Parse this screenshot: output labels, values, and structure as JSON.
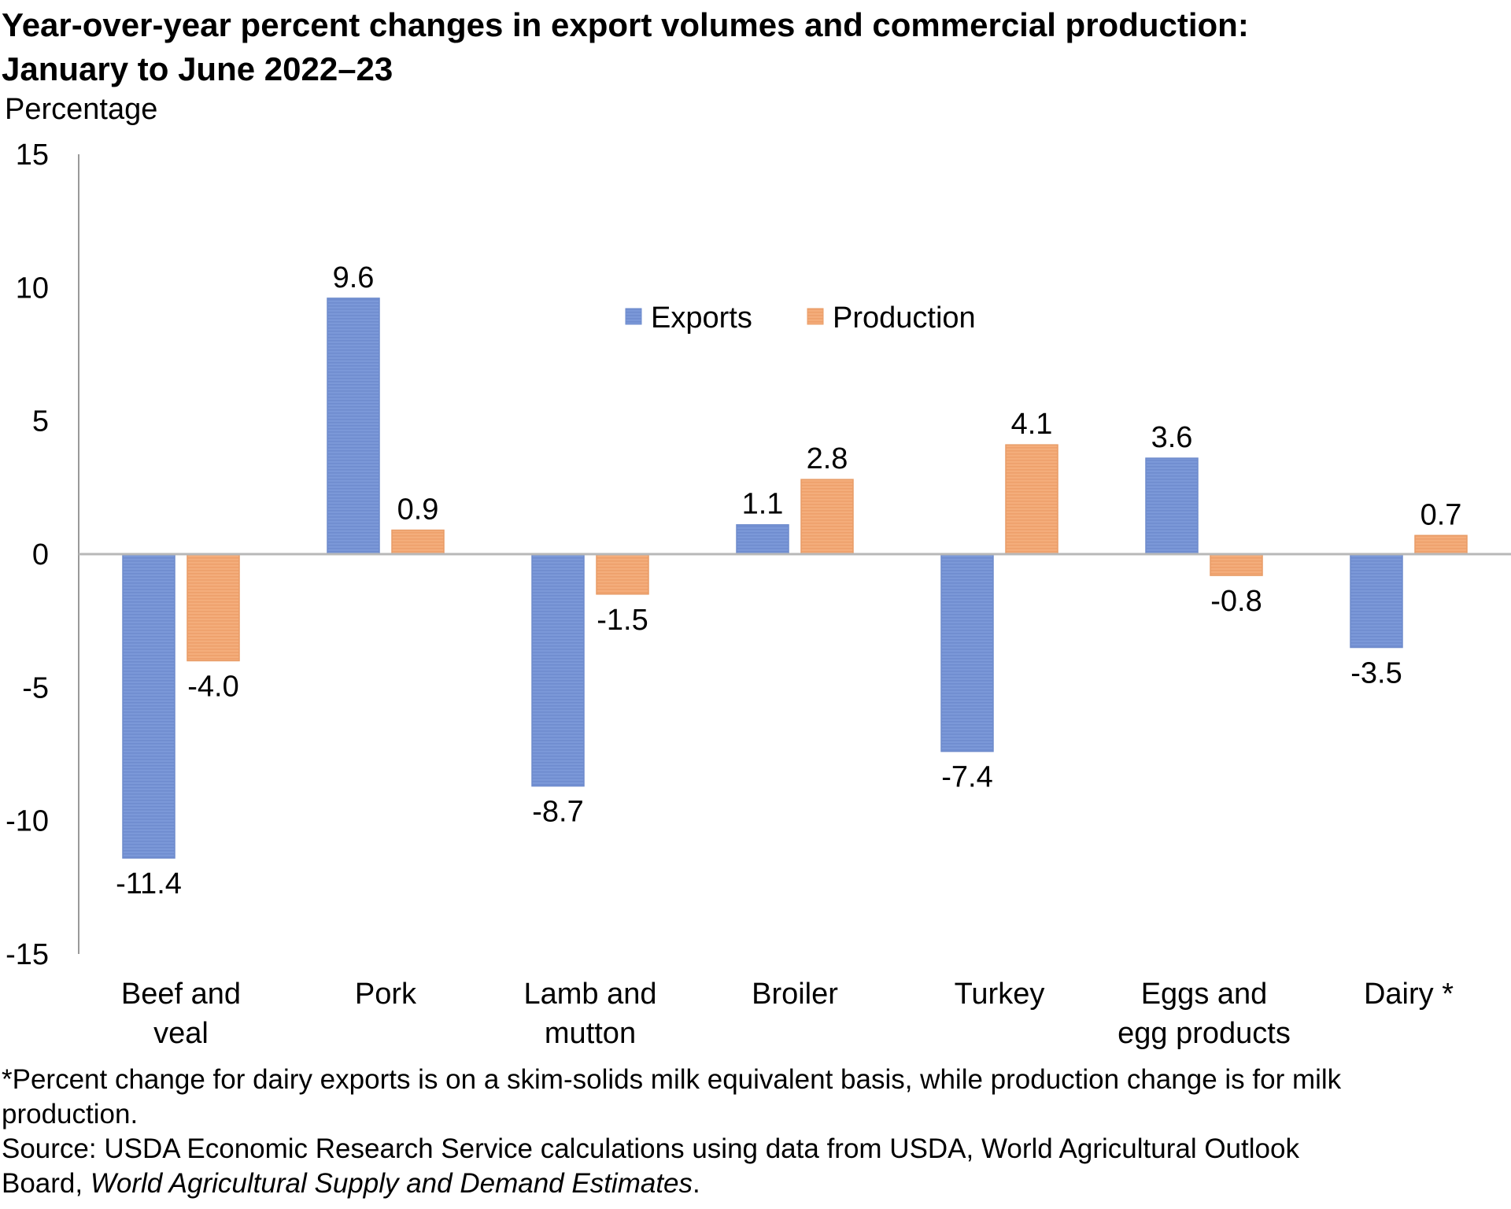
{
  "title_line1": "Year-over-year percent changes in export volumes and commercial production:",
  "title_line2": "January to June 2022–23",
  "chart_data": {
    "type": "bar",
    "ylabel": "Percentage",
    "ylim": [
      -15,
      15
    ],
    "yticks": [
      15,
      10,
      5,
      0,
      -5,
      -10,
      -15
    ],
    "categories": [
      [
        "Beef and",
        "veal"
      ],
      [
        "Pork"
      ],
      [
        "Lamb and",
        "mutton"
      ],
      [
        "Broiler"
      ],
      [
        "Turkey"
      ],
      [
        "Eggs and",
        "egg products"
      ],
      [
        "Dairy *"
      ]
    ],
    "series": [
      {
        "name": "Exports",
        "color": "#7b98d8",
        "values": [
          -11.4,
          9.6,
          -8.7,
          1.1,
          -7.4,
          3.6,
          -3.5
        ],
        "labels": [
          "-11.4",
          "9.6",
          "-8.7",
          "1.1",
          "-7.4",
          "3.6",
          "-3.5"
        ]
      },
      {
        "name": "Production",
        "color": "#f4ad7b",
        "values": [
          -4.0,
          0.9,
          -1.5,
          2.8,
          4.1,
          -0.8,
          0.7
        ],
        "labels": [
          "-4.0",
          "0.9",
          "-1.5",
          "2.8",
          "4.1",
          "-0.8",
          "0.7"
        ]
      }
    ],
    "legend_position": "top-center",
    "grid": false
  },
  "footnote_line1": "*Percent change for dairy exports is on a skim-solids milk equivalent basis, while production change is for milk",
  "footnote_line2": "production.",
  "source_line1": "Source: USDA Economic Research Service calculations using data from USDA, World Agricultural Outlook",
  "source_line2_prefix": "Board, ",
  "source_line2_italic": "World Agricultural Supply and Demand Estimates",
  "source_line2_suffix": "."
}
